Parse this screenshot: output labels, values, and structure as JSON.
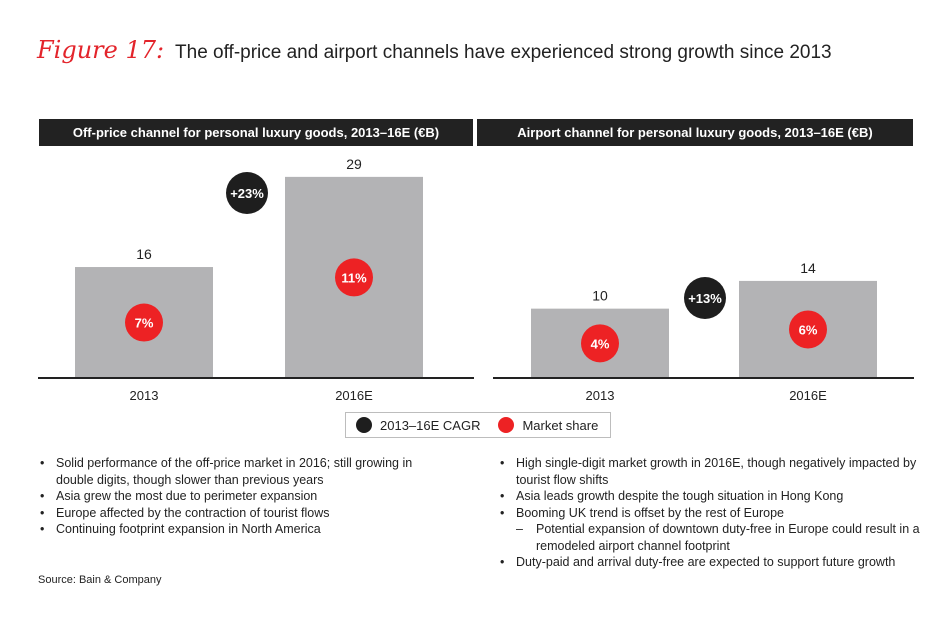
{
  "figure": {
    "label": "Figure 17:",
    "title": "The off-price and airport channels have experienced strong growth since 2013"
  },
  "chart_data": [
    {
      "type": "bar",
      "title": "Off-price channel for personal luxury goods, 2013–16E (€B)",
      "categories": [
        "2013",
        "2016E"
      ],
      "values": [
        16,
        29
      ],
      "value_labels": [
        "16",
        "29"
      ],
      "market_share": [
        "7%",
        "11%"
      ],
      "cagr": "+23%",
      "ylim": [
        0,
        31
      ]
    },
    {
      "type": "bar",
      "title": "Airport channel for personal luxury goods, 2013–16E (€B)",
      "categories": [
        "2013",
        "2016E"
      ],
      "values": [
        10,
        14
      ],
      "value_labels": [
        "10",
        "14"
      ],
      "market_share": [
        "4%",
        "6%"
      ],
      "cagr": "+13%",
      "ylim": [
        0,
        31
      ]
    }
  ],
  "legend": {
    "cagr": "2013–16E CAGR",
    "share": "Market share"
  },
  "colors": {
    "bar": "#b3b3b5",
    "accent_red": "#ed2224",
    "dark": "#1e1e1e"
  },
  "notes": {
    "left": [
      "Solid performance of the off-price market in 2016; still growing in double digits, though slower than previous years",
      "Asia grew the most due to perimeter expansion",
      "Europe affected by the contraction of tourist flows",
      "Continuing footprint expansion in North America"
    ],
    "right": [
      "High single-digit market growth in 2016E, though negatively impacted by tourist flow shifts",
      "Asia leads growth despite the tough situation in Hong Kong",
      "Booming UK trend is offset by the rest of Europe",
      "Potential expansion of downtown duty-free in Europe could result in a remodeled airport channel footprint",
      "Duty-paid and arrival duty-free are expected to support future growth"
    ]
  },
  "source": "Source: Bain & Company"
}
